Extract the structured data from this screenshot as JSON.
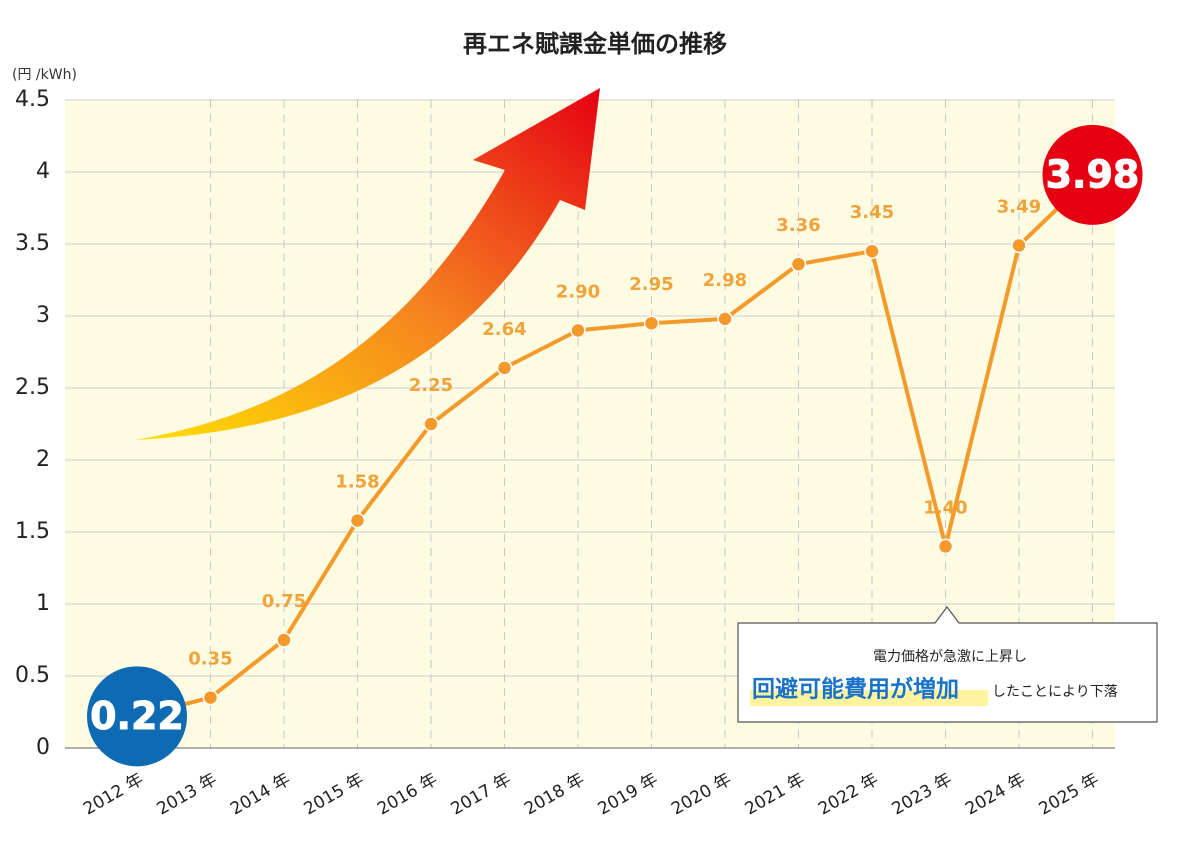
{
  "chart_data": {
    "type": "line",
    "title": "再エネ賦課金単価の推移",
    "y_label": "(円 /kWh)",
    "categories": [
      "2012 年",
      "2013 年",
      "2014 年",
      "2015 年",
      "2016 年",
      "2017 年",
      "2018 年",
      "2019 年",
      "2020 年",
      "2021 年",
      "2022 年",
      "2023 年",
      "2024 年",
      "2025 年"
    ],
    "values": [
      0.22,
      0.35,
      0.75,
      1.58,
      2.25,
      2.64,
      2.9,
      2.95,
      2.98,
      3.36,
      3.45,
      1.4,
      3.49,
      3.98
    ],
    "value_labels": [
      "0.22",
      "0.35",
      "0.75",
      "1.58",
      "2.25",
      "2.64",
      "2.90",
      "2.95",
      "2.98",
      "3.36",
      "3.45",
      "1.40",
      "3.49",
      "3.98"
    ],
    "color": "#f39a2a",
    "label_color": "#f0a33a",
    "highlight_colors": [
      "#f7941d",
      "#0f6ab4",
      "#e60012"
    ],
    "ylim": [
      0,
      4.5
    ],
    "yticks": [
      0,
      0.5,
      1,
      1.5,
      2,
      2.5,
      3,
      3.5,
      4,
      4.5
    ],
    "grid": true,
    "annotation": {
      "line1": "電力価格が急激に上昇し",
      "highlight": "回避可能費用が増加",
      "tail": "したことにより下落"
    }
  }
}
